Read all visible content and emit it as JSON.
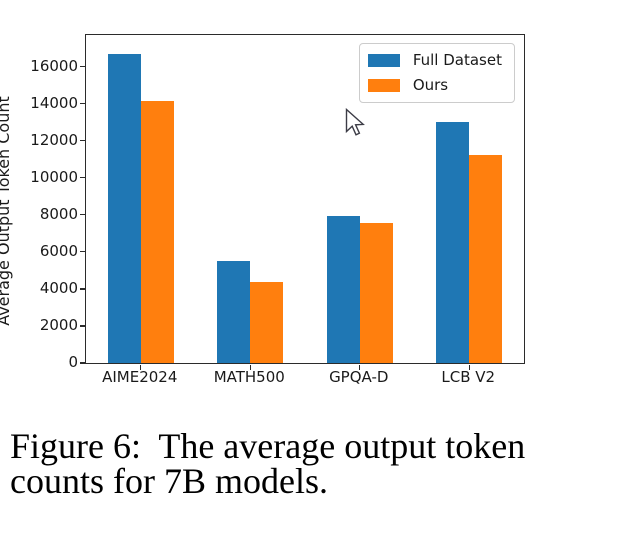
{
  "chart_data": {
    "type": "bar",
    "title": "",
    "categories": [
      "AIME2024",
      "MATH500",
      "GPQA-D",
      "LCB V2"
    ],
    "series": [
      {
        "name": "Full Dataset",
        "color": "#1f77b4",
        "values": [
          16700,
          5500,
          7950,
          13000
        ]
      },
      {
        "name": "Ours",
        "color": "#ff7f0e",
        "values": [
          14150,
          4350,
          7550,
          11250
        ]
      }
    ],
    "xlabel": "",
    "ylabel": "Average Output Token Count",
    "ylim": [
      0,
      17700
    ],
    "yticks": [
      0,
      2000,
      4000,
      6000,
      8000,
      10000,
      12000,
      14000,
      16000
    ],
    "grid": false,
    "legend_position": "upper right"
  },
  "caption": {
    "line1": "Figure 6:  The average output token",
    "line2": "counts for 7B models."
  },
  "cursor": {
    "type": "arrow-pointer"
  }
}
